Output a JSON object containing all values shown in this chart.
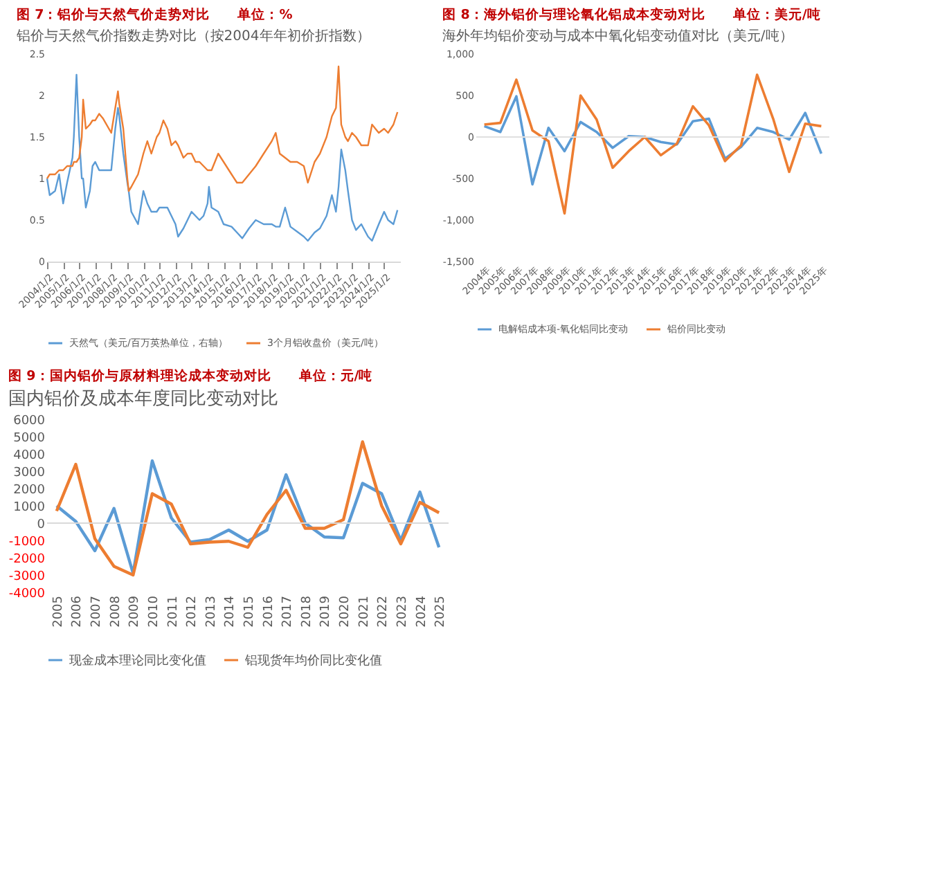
{
  "chart_data": [
    {
      "type": "line",
      "title": "图 7：铝价与天然气价走势对比　　单位：%",
      "subtitle": "铝价与天然气价指数走势对比（按2004年年初价折指数）",
      "legend": "bottom",
      "grid": false,
      "x": [
        "2004-01",
        "2004-03",
        "2004-07",
        "2004-10",
        "2005-01",
        "2005-04",
        "2005-08",
        "2005-09",
        "2005-11",
        "2006-01",
        "2006-03",
        "2006-04",
        "2006-06",
        "2006-09",
        "2006-11",
        "2007-01",
        "2007-04",
        "2007-07",
        "2008-01",
        "2008-04",
        "2008-06",
        "2008-07",
        "2008-10",
        "2009-01",
        "2009-02",
        "2009-04",
        "2009-09",
        "2010-01",
        "2010-04",
        "2010-07",
        "2010-11",
        "2011-01",
        "2011-04",
        "2011-07",
        "2011-10",
        "2012-01",
        "2012-03",
        "2012-07",
        "2012-10",
        "2013-01",
        "2013-04",
        "2013-07",
        "2013-10",
        "2014-01",
        "2014-02",
        "2014-04",
        "2014-09",
        "2015-01",
        "2015-07",
        "2015-11",
        "2016-03",
        "2016-08",
        "2017-01",
        "2017-07",
        "2018-01",
        "2018-04",
        "2018-07",
        "2018-11",
        "2019-03",
        "2019-08",
        "2020-01",
        "2020-04",
        "2020-09",
        "2021-01",
        "2021-06",
        "2021-10",
        "2022-01",
        "2022-03",
        "2022-05",
        "2022-08",
        "2022-10",
        "2023-01",
        "2023-04",
        "2023-08",
        "2024-01",
        "2024-04",
        "2024-09",
        "2025-01",
        "2025-04",
        "2025-08",
        "2025-11"
      ],
      "xlim": [
        "2004-01-01",
        "2025-12-31"
      ],
      "xticks": [
        {
          "value": "2004-01-02",
          "label": "2004/1/2"
        },
        {
          "value": "2005-01-02",
          "label": "2005/1/2"
        },
        {
          "value": "2006-01-02",
          "label": "2006/1/2"
        },
        {
          "value": "2007-01-02",
          "label": "2007/1/2"
        },
        {
          "value": "2008-01-02",
          "label": "2008/1/2"
        },
        {
          "value": "2009-01-02",
          "label": "2009/1/2"
        },
        {
          "value": "2010-01-02",
          "label": "2010/1/2"
        },
        {
          "value": "2011-01-02",
          "label": "2011/1/2"
        },
        {
          "value": "2012-01-02",
          "label": "2012/1/2"
        },
        {
          "value": "2013-01-02",
          "label": "2013/1/2"
        },
        {
          "value": "2014-01-02",
          "label": "2014/1/2"
        },
        {
          "value": "2015-01-02",
          "label": "2015/1/2"
        },
        {
          "value": "2016-01-02",
          "label": "2016/1/2"
        },
        {
          "value": "2017-01-02",
          "label": "2017/1/2"
        },
        {
          "value": "2018-01-02",
          "label": "2018/1/2"
        },
        {
          "value": "2019-01-02",
          "label": "2019/1/2"
        },
        {
          "value": "2020-01-02",
          "label": "2020/1/2"
        },
        {
          "value": "2021-01-02",
          "label": "2021/1/2"
        },
        {
          "value": "2022-01-02",
          "label": "2022/1/2"
        },
        {
          "value": "2023-01-02",
          "label": "2023/1/2"
        },
        {
          "value": "2024-01-02",
          "label": "2024/1/2"
        },
        {
          "value": "2025-01-02",
          "label": "2025/1/2"
        }
      ],
      "ylim": [
        0,
        2.5
      ],
      "yticks": [
        0,
        0.5,
        1,
        1.5,
        2,
        2.5
      ],
      "series": [
        {
          "name": "天然气（美元/百万英热单位，右轴）",
          "color": "#5b9bd5",
          "values": [
            1.0,
            0.8,
            0.85,
            1.05,
            0.7,
            0.95,
            1.25,
            1.5,
            2.25,
            1.5,
            1.0,
            1.0,
            0.65,
            0.85,
            1.15,
            1.2,
            1.1,
            1.1,
            1.1,
            1.6,
            1.85,
            1.75,
            1.3,
            0.95,
            0.85,
            0.6,
            0.45,
            0.85,
            0.7,
            0.6,
            0.6,
            0.65,
            0.65,
            0.65,
            0.55,
            0.45,
            0.3,
            0.4,
            0.5,
            0.6,
            0.55,
            0.5,
            0.55,
            0.7,
            0.9,
            0.65,
            0.6,
            0.45,
            0.42,
            0.35,
            0.28,
            0.4,
            0.5,
            0.45,
            0.45,
            0.42,
            0.42,
            0.65,
            0.42,
            0.36,
            0.3,
            0.25,
            0.35,
            0.4,
            0.55,
            0.8,
            0.6,
            0.9,
            1.35,
            1.1,
            0.85,
            0.5,
            0.38,
            0.45,
            0.3,
            0.25,
            0.45,
            0.6,
            0.5,
            0.45,
            0.62
          ]
        },
        {
          "name": "3个月铝收盘价（美元/吨）",
          "color": "#ed7d31",
          "values": [
            1.0,
            1.05,
            1.05,
            1.1,
            1.1,
            1.15,
            1.15,
            1.2,
            1.2,
            1.25,
            1.5,
            1.95,
            1.6,
            1.65,
            1.7,
            1.7,
            1.78,
            1.72,
            1.55,
            1.85,
            2.05,
            1.9,
            1.6,
            1.0,
            0.85,
            0.9,
            1.05,
            1.3,
            1.45,
            1.3,
            1.5,
            1.55,
            1.7,
            1.6,
            1.4,
            1.45,
            1.4,
            1.25,
            1.3,
            1.3,
            1.2,
            1.2,
            1.15,
            1.1,
            1.1,
            1.1,
            1.3,
            1.2,
            1.05,
            0.95,
            0.95,
            1.05,
            1.15,
            1.3,
            1.45,
            1.55,
            1.3,
            1.25,
            1.2,
            1.2,
            1.15,
            0.95,
            1.2,
            1.3,
            1.5,
            1.75,
            1.85,
            2.35,
            1.65,
            1.5,
            1.45,
            1.55,
            1.5,
            1.4,
            1.4,
            1.65,
            1.55,
            1.6,
            1.55,
            1.65,
            1.8
          ]
        }
      ]
    },
    {
      "type": "line",
      "title": "图 8：海外铝价与理论氧化铝成本变动对比　　单位：美元/吨",
      "subtitle": "海外年均铝价变动与成本中氧化铝变动值对比（美元/吨）",
      "legend": "bottom",
      "grid": false,
      "categories": [
        "2004年",
        "2005年",
        "2006年",
        "2007年",
        "2008年",
        "2009年",
        "2010年",
        "2011年",
        "2012年",
        "2013年",
        "2014年",
        "2015年",
        "2016年",
        "2017年",
        "2018年",
        "2019年",
        "2020年",
        "2021年",
        "2022年",
        "2023年",
        "2024年",
        "2025年"
      ],
      "ylim": [
        -1500,
        1000
      ],
      "yticks": [
        {
          "value": -1500,
          "label": "-1,500"
        },
        {
          "value": -1000,
          "label": "-1,000"
        },
        -500,
        0,
        500,
        {
          "value": 1000,
          "label": "1,000"
        }
      ],
      "ref_lines": [
        {
          "axis": "y",
          "value": 0,
          "color": "#e0e0e0"
        }
      ],
      "series": [
        {
          "name": "电解铝成本项-氧化铝同比变动",
          "color": "#5b9bd5",
          "values": [
            130,
            60,
            490,
            -570,
            110,
            -170,
            180,
            60,
            -130,
            10,
            0,
            -60,
            -90,
            190,
            220,
            -260,
            -120,
            110,
            60,
            -30,
            290,
            -200
          ]
        },
        {
          "name": "铝价同比变动",
          "color": "#ed7d31",
          "values": [
            150,
            170,
            690,
            80,
            -50,
            -920,
            500,
            210,
            -370,
            -170,
            0,
            -220,
            -80,
            370,
            140,
            -290,
            -100,
            750,
            220,
            -420,
            160,
            130
          ]
        }
      ]
    },
    {
      "type": "line",
      "title": "图 9：国内铝价与原材料理论成本变动对比　　单位：元/吨",
      "subtitle": "国内铝价及成本年度同比变动对比",
      "legend": "bottom",
      "grid": false,
      "categories": [
        "2005",
        "2006",
        "2007",
        "2008",
        "2009",
        "2010",
        "2011",
        "2012",
        "2013",
        "2014",
        "2015",
        "2016",
        "2017",
        "2018",
        "2019",
        "2020",
        "2021",
        "2022",
        "2023",
        "2024",
        "2025"
      ],
      "ylim": [
        -4000,
        6000
      ],
      "yticks": [
        -4000,
        -3000,
        -2000,
        -1000,
        0,
        1000,
        2000,
        3000,
        4000,
        5000,
        6000
      ],
      "ref_lines": [
        {
          "axis": "y",
          "value": 0,
          "color": "#d9d9d9"
        }
      ],
      "series": [
        {
          "name": "现金成本理论同比变化值",
          "color": "#5b9bd5",
          "values": [
            1000,
            100,
            -1600,
            850,
            -2900,
            3600,
            300,
            -1100,
            -950,
            -400,
            -1050,
            -400,
            2800,
            0,
            -800,
            -850,
            2300,
            1700,
            -1000,
            1800,
            -1400
          ]
        },
        {
          "name": "铝现货年均价同比变化值",
          "color": "#ed7d31",
          "values": [
            700,
            3400,
            -900,
            -2500,
            -3000,
            1700,
            1100,
            -1200,
            -1100,
            -1050,
            -1400,
            500,
            1900,
            -300,
            -300,
            200,
            4700,
            1000,
            -1200,
            1200,
            600
          ]
        }
      ]
    }
  ]
}
